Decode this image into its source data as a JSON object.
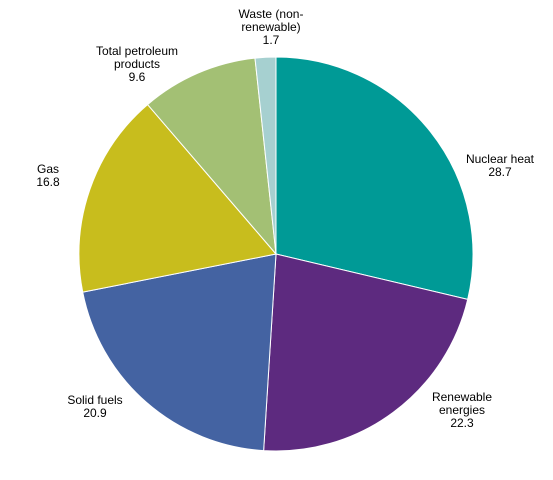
{
  "chart_data": {
    "type": "pie",
    "title": "",
    "slices": [
      {
        "label_lines": [
          "Nuclear heat"
        ],
        "value": 28.7,
        "value_label": "28.7",
        "color": "#009a96"
      },
      {
        "label_lines": [
          "Renewable",
          "energies"
        ],
        "value": 22.3,
        "value_label": "22.3",
        "color": "#5d2a7f"
      },
      {
        "label_lines": [
          "Solid fuels"
        ],
        "value": 20.9,
        "value_label": "20.9",
        "color": "#4463a2"
      },
      {
        "label_lines": [
          "Gas"
        ],
        "value": 16.8,
        "value_label": "16.8",
        "color": "#c8bd1d"
      },
      {
        "label_lines": [
          "Total petroleum",
          "products"
        ],
        "value": 9.6,
        "value_label": "9.6",
        "color": "#a3c074"
      },
      {
        "label_lines": [
          "Waste (non-",
          "renewable)"
        ],
        "value": 1.7,
        "value_label": "1.7",
        "color": "#a6d0d0"
      }
    ],
    "start_angle": "12 o'clock",
    "direction": "clockwise",
    "legend": "none (direct labels)"
  }
}
